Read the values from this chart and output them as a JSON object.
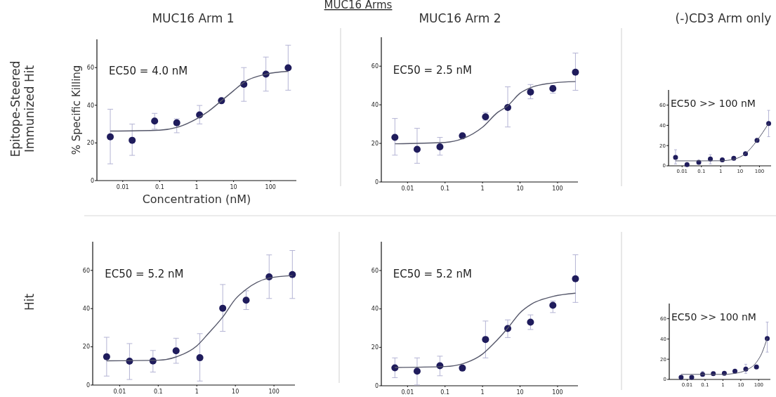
{
  "chart_data": [
    {
      "type": "scatter",
      "title": "MUC16 Arm 1",
      "xlabel": "Concentration (nM)",
      "ylabel": "% Specific Killing",
      "annotations": [
        "EC50 = 4.0 nM"
      ],
      "log": "x",
      "xlim": [
        0.002,
        500
      ],
      "xticks": [
        0.01,
        0.1,
        1,
        10,
        100
      ],
      "ylim": [
        0,
        75
      ],
      "yticks": [
        0,
        20,
        40,
        60
      ],
      "series": [
        {
          "type": "scatter",
          "marker": "circle",
          "color": "#1f1c5c",
          "x": [
            0.0046,
            0.018,
            0.073,
            0.29,
            1.2,
            4.7,
            19,
            75,
            300
          ],
          "values": [
            23.2,
            21.4,
            31.6,
            30.7,
            34.9,
            42.4,
            51.1,
            56.5,
            59.9
          ],
          "errors": [
            [
              8.9,
              37.9
            ],
            [
              13.4,
              30.0
            ],
            [
              27.3,
              35.7
            ],
            [
              25.4,
              32.8
            ],
            [
              30.1,
              39.9
            ],
            null,
            [
              42.1,
              60.0
            ],
            [
              47.5,
              65.6
            ],
            [
              48.0,
              71.9
            ]
          ]
        },
        {
          "type": "line",
          "color": "#55576a",
          "x": [
            0.0046,
            0.1,
            0.3,
            1,
            2,
            4.7,
            10,
            20,
            75,
            300
          ],
          "values": [
            26.3,
            26.8,
            28.3,
            32.8,
            36.5,
            42.4,
            47.7,
            52.5,
            56.5,
            58.0
          ]
        }
      ]
    },
    {
      "type": "scatter",
      "title": "MUC16 Arm 2",
      "annotations": [
        "EC50 = 2.5 nM"
      ],
      "log": "x",
      "xlim": [
        0.002,
        350
      ],
      "xticks": [
        0.01,
        0.1,
        1,
        10,
        100
      ],
      "ylim": [
        0,
        75
      ],
      "yticks": [
        0,
        20,
        40,
        60
      ],
      "series": [
        {
          "type": "scatter",
          "marker": "circle",
          "color": "#1f1c5c",
          "x": [
            0.0046,
            0.018,
            0.073,
            0.29,
            1.2,
            4.7,
            19,
            75,
            300
          ],
          "values": [
            23.1,
            16.9,
            18.2,
            23.9,
            33.8,
            38.6,
            46.6,
            48.4,
            56.9
          ],
          "errors": [
            [
              13.9,
              32.9
            ],
            [
              9.7,
              27.8
            ],
            [
              13.9,
              23.1
            ],
            null,
            [
              32.0,
              36.0
            ],
            [
              28.5,
              49.3
            ],
            [
              43.1,
              50.5
            ],
            [
              46.0,
              50.0
            ],
            [
              47.5,
              66.8
            ]
          ]
        },
        {
          "type": "line",
          "color": "#55576a",
          "x": [
            0.0046,
            0.1,
            0.3,
            1,
            2.5,
            4.7,
            10,
            20,
            75,
            300
          ],
          "values": [
            19.8,
            20.5,
            22.5,
            28.4,
            36.0,
            39.5,
            46.0,
            49.0,
            51.3,
            52.0
          ]
        }
      ]
    },
    {
      "type": "scatter",
      "title": "(-)CD3 Arm only",
      "annotations": [
        "EC50 >> 100 nM"
      ],
      "log": "x",
      "xlim": [
        0.002,
        400
      ],
      "xticks": [
        0.01,
        0.1,
        1,
        10,
        100
      ],
      "ylim": [
        0,
        75
      ],
      "yticks": [
        0,
        20,
        40,
        60
      ],
      "series": [
        {
          "type": "scatter",
          "marker": "circle",
          "color": "#1f1c5c",
          "x": [
            0.0046,
            0.018,
            0.073,
            0.29,
            1.2,
            4.7,
            19,
            75,
            300
          ],
          "values": [
            8.4,
            1.2,
            3.5,
            6.8,
            5.9,
            7.5,
            11.9,
            25.1,
            41.9
          ],
          "errors": [
            [
              1.9,
              15.9
            ],
            null,
            null,
            [
              2.0,
              11.0
            ],
            null,
            null,
            null,
            null,
            [
              28.8,
              54.8
            ]
          ]
        },
        {
          "type": "line",
          "color": "#55576a",
          "x": [
            0.0046,
            0.1,
            1,
            4.7,
            18.8,
            75,
            300
          ],
          "values": [
            4.9,
            4.9,
            5.0,
            6.5,
            12.0,
            25.0,
            42.0
          ]
        }
      ]
    },
    {
      "type": "scatter",
      "annotations": [
        "EC50 = 5.2 nM"
      ],
      "log": "x",
      "xlim": [
        0.002,
        350
      ],
      "xticks": [
        0.01,
        0.1,
        1,
        10,
        100
      ],
      "ylim": [
        0,
        75
      ],
      "yticks": [
        0,
        20,
        40,
        60
      ],
      "series": [
        {
          "type": "scatter",
          "marker": "circle",
          "color": "#1f1c5c",
          "x": [
            0.0046,
            0.018,
            0.073,
            0.29,
            1.2,
            4.7,
            19,
            75,
            300
          ],
          "values": [
            14.8,
            12.5,
            12.6,
            17.9,
            14.3,
            40.2,
            44.4,
            56.6,
            57.8
          ],
          "errors": [
            [
              4.7,
              25.0
            ],
            [
              2.9,
              21.7
            ],
            [
              6.8,
              18.1
            ],
            [
              11.4,
              24.5
            ],
            [
              2.1,
              26.9
            ],
            [
              28.1,
              52.6
            ],
            [
              39.5,
              49.3
            ],
            [
              45.3,
              68.1
            ],
            [
              45.3,
              70.4
            ]
          ]
        },
        {
          "type": "line",
          "color": "#55576a",
          "x": [
            0.0046,
            0.1,
            0.3,
            1,
            2,
            4.7,
            10,
            18.8,
            75,
            300
          ],
          "values": [
            12.7,
            13.0,
            14.8,
            20.5,
            27.0,
            35.6,
            45.0,
            50.0,
            56.0,
            57.3
          ]
        }
      ]
    },
    {
      "type": "scatter",
      "annotations": [
        "EC50 = 5.2 nM"
      ],
      "log": "x",
      "xlim": [
        0.002,
        350
      ],
      "xticks": [
        0.01,
        0.1,
        1,
        10,
        100
      ],
      "ylim": [
        0,
        75
      ],
      "yticks": [
        0,
        20,
        40,
        60
      ],
      "series": [
        {
          "type": "scatter",
          "marker": "circle",
          "color": "#1f1c5c",
          "x": [
            0.0046,
            0.018,
            0.073,
            0.29,
            1.2,
            4.7,
            19,
            75,
            300
          ],
          "values": [
            9.3,
            7.6,
            10.4,
            9.2,
            24.1,
            29.8,
            33.1,
            41.9,
            55.7
          ],
          "errors": [
            [
              4.2,
              14.5
            ],
            [
              0.4,
              14.5
            ],
            [
              5.2,
              15.4
            ],
            null,
            [
              14.5,
              33.7
            ],
            [
              25.1,
              34.3
            ],
            [
              29.3,
              36.9
            ],
            [
              38.1,
              44.1
            ],
            [
              43.4,
              68.2
            ]
          ]
        },
        {
          "type": "line",
          "color": "#55576a",
          "x": [
            0.0046,
            0.1,
            0.3,
            1,
            2,
            4.7,
            10,
            20,
            75,
            300
          ],
          "values": [
            9.5,
            10.0,
            11.5,
            16.5,
            22.0,
            30.0,
            38.0,
            42.5,
            46.5,
            48.2
          ]
        }
      ]
    },
    {
      "type": "scatter",
      "annotations": [
        "EC50 >> 100 nM"
      ],
      "log": "x",
      "xlim": [
        0.001,
        450
      ],
      "xticks": [
        0.01,
        0.1,
        1,
        10,
        100
      ],
      "ylim": [
        0,
        75
      ],
      "yticks": [
        0,
        20,
        40,
        60
      ],
      "series": [
        {
          "type": "scatter",
          "marker": "circle",
          "color": "#1f1c5c",
          "x": [
            0.0046,
            0.018,
            0.073,
            0.29,
            1.2,
            4.7,
            19,
            75,
            300
          ],
          "values": [
            2.1,
            2.1,
            5.1,
            5.8,
            6.0,
            8.1,
            10.2,
            12.3,
            40.5
          ],
          "errors": [
            null,
            null,
            [
              3.0,
              8.0
            ],
            null,
            null,
            null,
            [
              6.0,
              15.0
            ],
            null,
            [
              27.0,
              56.7
            ]
          ]
        },
        {
          "type": "line",
          "color": "#55576a",
          "x": [
            0.0046,
            0.1,
            1,
            4.7,
            18.8,
            75,
            150,
            300
          ],
          "values": [
            5.0,
            5.0,
            5.0,
            6.0,
            9.0,
            17.0,
            26.0,
            41.0
          ]
        }
      ]
    },
    {
      "type": "other",
      "title": "MUC16 Arms",
      "annotations": [
        "Epitope-Steered Immunized Hit",
        "Hit"
      ]
    }
  ]
}
